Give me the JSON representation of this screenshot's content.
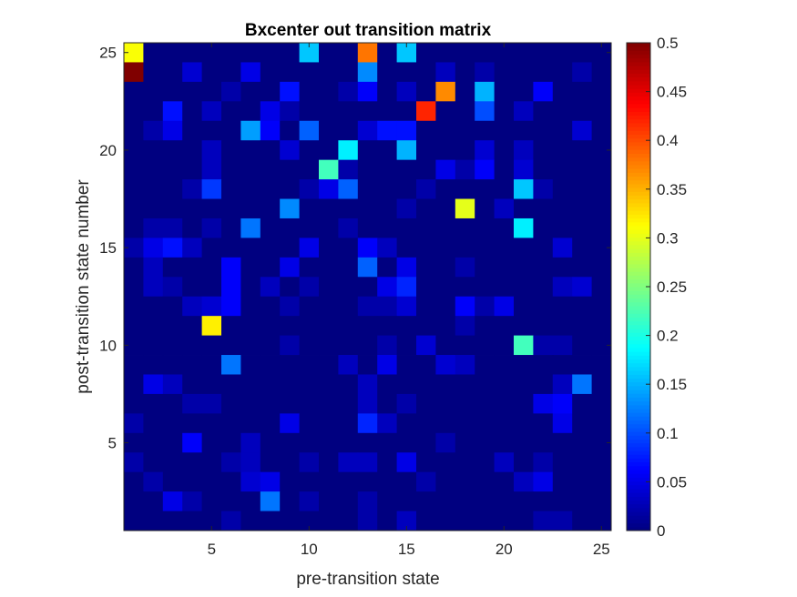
{
  "chart_data": {
    "type": "heatmap",
    "title": "Bxcenter out transition matrix",
    "xlabel": "pre-transition state",
    "ylabel": "post-transition state number",
    "x_ticks": [
      "5",
      "10",
      "15",
      "20",
      "25"
    ],
    "y_ticks": [
      "5",
      "10",
      "15",
      "20",
      "25"
    ],
    "xlim": [
      0.5,
      25.5
    ],
    "ylim": [
      0.5,
      25.5
    ],
    "colormap": "jet",
    "clim": [
      0,
      0.5
    ],
    "colorbar_ticks": [
      "0",
      "0.05",
      "0.1",
      "0.15",
      "0.2",
      "0.25",
      "0.3",
      "0.35",
      "0.4",
      "0.45",
      "0.5"
    ],
    "colorbar_position": "right",
    "grid": false,
    "matrix_rows_top_to_bottom": [
      [
        0.31,
        0.0,
        0.0,
        0.0,
        0.0,
        0.0,
        0.0,
        0.0,
        0.0,
        0.16,
        0.0,
        0.0,
        0.38,
        0.0,
        0.16,
        0.0,
        0.0,
        0.0,
        0.0,
        0.0,
        0.0,
        0.0,
        0.0,
        0.0,
        0.0
      ],
      [
        0.5,
        0.0,
        0.0,
        0.04,
        0.0,
        0.0,
        0.05,
        0.0,
        0.0,
        0.0,
        0.0,
        0.0,
        0.13,
        0.0,
        0.0,
        0.0,
        0.03,
        0.0,
        0.02,
        0.0,
        0.0,
        0.0,
        0.0,
        0.02,
        0.0
      ],
      [
        0.0,
        0.0,
        0.0,
        0.0,
        0.0,
        0.02,
        0.0,
        0.0,
        0.07,
        0.0,
        0.0,
        0.02,
        0.06,
        0.0,
        0.03,
        0.0,
        0.37,
        0.0,
        0.15,
        0.0,
        0.0,
        0.06,
        0.0,
        0.0,
        0.0
      ],
      [
        0.0,
        0.0,
        0.07,
        0.0,
        0.03,
        0.0,
        0.0,
        0.05,
        0.02,
        0.0,
        0.0,
        0.0,
        0.0,
        0.0,
        0.0,
        0.42,
        0.0,
        0.0,
        0.1,
        0.0,
        0.03,
        0.0,
        0.0,
        0.0,
        0.0
      ],
      [
        0.0,
        0.02,
        0.05,
        0.0,
        0.0,
        0.0,
        0.14,
        0.06,
        0.0,
        0.11,
        0.0,
        0.0,
        0.04,
        0.07,
        0.07,
        0.0,
        0.0,
        0.0,
        0.0,
        0.0,
        0.0,
        0.0,
        0.0,
        0.04,
        0.0
      ],
      [
        0.0,
        0.0,
        0.0,
        0.0,
        0.03,
        0.0,
        0.0,
        0.0,
        0.04,
        0.0,
        0.0,
        0.18,
        0.0,
        0.0,
        0.15,
        0.0,
        0.0,
        0.0,
        0.04,
        0.0,
        0.03,
        0.0,
        0.0,
        0.0,
        0.0
      ],
      [
        0.0,
        0.0,
        0.0,
        0.0,
        0.03,
        0.0,
        0.0,
        0.0,
        0.0,
        0.0,
        0.22,
        0.02,
        0.0,
        0.0,
        0.0,
        0.0,
        0.05,
        0.02,
        0.06,
        0.0,
        0.04,
        0.0,
        0.0,
        0.0,
        0.0
      ],
      [
        0.0,
        0.0,
        0.0,
        0.02,
        0.09,
        0.0,
        0.0,
        0.0,
        0.0,
        0.02,
        0.05,
        0.11,
        0.0,
        0.0,
        0.0,
        0.02,
        0.0,
        0.0,
        0.0,
        0.0,
        0.16,
        0.02,
        0.0,
        0.0,
        0.0
      ],
      [
        0.0,
        0.0,
        0.0,
        0.0,
        0.0,
        0.0,
        0.0,
        0.0,
        0.13,
        0.0,
        0.0,
        0.0,
        0.0,
        0.0,
        0.02,
        0.0,
        0.0,
        0.3,
        0.0,
        0.03,
        0.0,
        0.0,
        0.0,
        0.0,
        0.0
      ],
      [
        0.0,
        0.02,
        0.02,
        0.0,
        0.02,
        0.0,
        0.12,
        0.0,
        0.0,
        0.0,
        0.0,
        0.02,
        0.0,
        0.0,
        0.0,
        0.0,
        0.0,
        0.0,
        0.0,
        0.0,
        0.18,
        0.0,
        0.0,
        0.0,
        0.0
      ],
      [
        0.02,
        0.05,
        0.07,
        0.03,
        0.0,
        0.0,
        0.0,
        0.0,
        0.0,
        0.05,
        0.0,
        0.0,
        0.06,
        0.03,
        0.0,
        0.0,
        0.0,
        0.0,
        0.0,
        0.0,
        0.0,
        0.0,
        0.04,
        0.0,
        0.0
      ],
      [
        0.0,
        0.03,
        0.0,
        0.0,
        0.0,
        0.06,
        0.0,
        0.0,
        0.05,
        0.0,
        0.0,
        0.0,
        0.11,
        0.0,
        0.05,
        0.0,
        0.0,
        0.02,
        0.0,
        0.0,
        0.0,
        0.0,
        0.0,
        0.0,
        0.0
      ],
      [
        0.0,
        0.03,
        0.02,
        0.0,
        0.0,
        0.06,
        0.0,
        0.03,
        0.0,
        0.02,
        0.0,
        0.0,
        0.0,
        0.05,
        0.08,
        0.0,
        0.0,
        0.0,
        0.0,
        0.0,
        0.0,
        0.0,
        0.03,
        0.04,
        0.0
      ],
      [
        0.0,
        0.0,
        0.0,
        0.03,
        0.04,
        0.06,
        0.0,
        0.0,
        0.02,
        0.0,
        0.0,
        0.0,
        0.02,
        0.02,
        0.04,
        0.0,
        0.0,
        0.06,
        0.02,
        0.05,
        0.0,
        0.0,
        0.0,
        0.0,
        0.0
      ],
      [
        0.0,
        0.0,
        0.0,
        0.0,
        0.32,
        0.0,
        0.0,
        0.0,
        0.0,
        0.0,
        0.0,
        0.0,
        0.0,
        0.0,
        0.0,
        0.0,
        0.0,
        0.02,
        0.0,
        0.0,
        0.0,
        0.0,
        0.0,
        0.0,
        0.0
      ],
      [
        0.0,
        0.0,
        0.0,
        0.0,
        0.0,
        0.0,
        0.0,
        0.0,
        0.02,
        0.0,
        0.0,
        0.0,
        0.0,
        0.02,
        0.0,
        0.04,
        0.0,
        0.0,
        0.0,
        0.0,
        0.22,
        0.02,
        0.02,
        0.0,
        0.0
      ],
      [
        0.0,
        0.0,
        0.0,
        0.0,
        0.0,
        0.12,
        0.0,
        0.0,
        0.0,
        0.0,
        0.0,
        0.03,
        0.0,
        0.05,
        0.0,
        0.0,
        0.04,
        0.03,
        0.0,
        0.0,
        0.0,
        0.0,
        0.0,
        0.0,
        0.0
      ],
      [
        0.0,
        0.05,
        0.03,
        0.0,
        0.0,
        0.0,
        0.0,
        0.0,
        0.0,
        0.0,
        0.0,
        0.0,
        0.03,
        0.0,
        0.0,
        0.0,
        0.0,
        0.0,
        0.0,
        0.0,
        0.0,
        0.0,
        0.03,
        0.12,
        0.0
      ],
      [
        0.0,
        0.0,
        0.0,
        0.02,
        0.02,
        0.0,
        0.0,
        0.0,
        0.0,
        0.0,
        0.0,
        0.0,
        0.03,
        0.0,
        0.02,
        0.0,
        0.0,
        0.0,
        0.0,
        0.0,
        0.0,
        0.05,
        0.06,
        0.0,
        0.0
      ],
      [
        0.02,
        0.0,
        0.0,
        0.0,
        0.0,
        0.0,
        0.0,
        0.0,
        0.05,
        0.0,
        0.0,
        0.0,
        0.08,
        0.03,
        0.0,
        0.0,
        0.0,
        0.0,
        0.0,
        0.0,
        0.0,
        0.0,
        0.05,
        0.0,
        0.0
      ],
      [
        0.0,
        0.0,
        0.0,
        0.06,
        0.0,
        0.0,
        0.03,
        0.0,
        0.0,
        0.0,
        0.0,
        0.0,
        0.0,
        0.0,
        0.0,
        0.0,
        0.02,
        0.0,
        0.0,
        0.0,
        0.0,
        0.0,
        0.0,
        0.0,
        0.0
      ],
      [
        0.02,
        0.0,
        0.0,
        0.0,
        0.0,
        0.02,
        0.03,
        0.0,
        0.0,
        0.02,
        0.0,
        0.03,
        0.03,
        0.0,
        0.05,
        0.0,
        0.0,
        0.0,
        0.0,
        0.03,
        0.0,
        0.02,
        0.0,
        0.0,
        0.0
      ],
      [
        0.0,
        0.02,
        0.0,
        0.0,
        0.0,
        0.0,
        0.04,
        0.05,
        0.0,
        0.0,
        0.0,
        0.0,
        0.0,
        0.0,
        0.0,
        0.02,
        0.0,
        0.0,
        0.0,
        0.0,
        0.03,
        0.05,
        0.0,
        0.0,
        0.0
      ],
      [
        0.0,
        0.0,
        0.05,
        0.02,
        0.0,
        0.0,
        0.0,
        0.12,
        0.0,
        0.02,
        0.0,
        0.0,
        0.02,
        0.0,
        0.0,
        0.0,
        0.0,
        0.0,
        0.0,
        0.0,
        0.0,
        0.0,
        0.0,
        0.0,
        0.0
      ],
      [
        0.0,
        0.0,
        0.0,
        0.0,
        0.0,
        0.02,
        0.0,
        0.0,
        0.0,
        0.0,
        0.0,
        0.0,
        0.02,
        0.0,
        0.03,
        0.0,
        0.0,
        0.0,
        0.0,
        0.0,
        0.0,
        0.02,
        0.02,
        0.0,
        0.0
      ]
    ]
  }
}
